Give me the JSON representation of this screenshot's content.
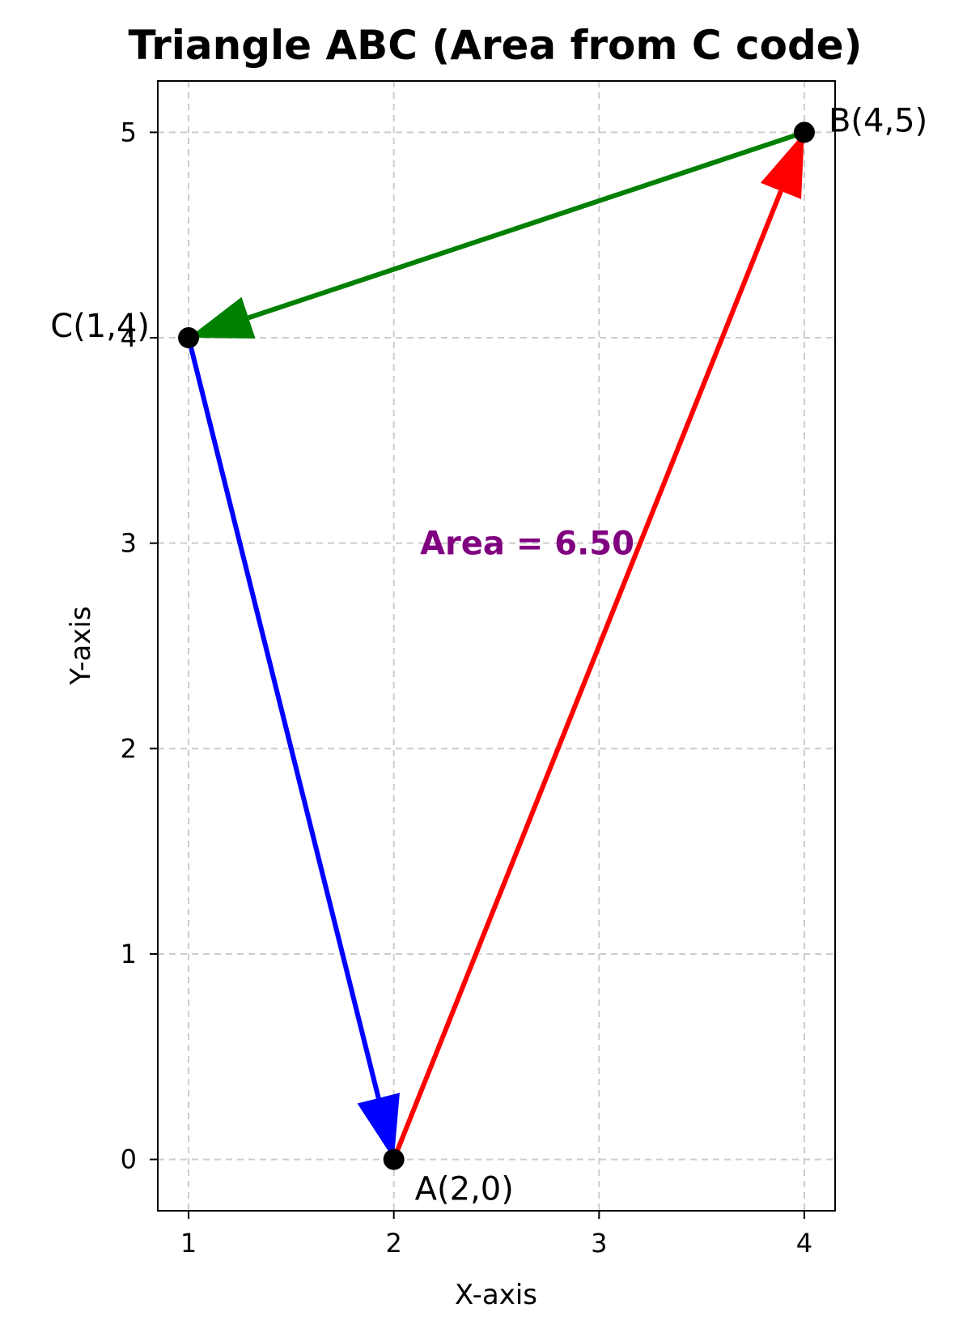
{
  "chart_data": {
    "type": "scatter",
    "title": "Triangle ABC (Area from C code)",
    "xlabel": "X-axis",
    "ylabel": "Y-axis",
    "xlim": [
      0.85,
      4.15
    ],
    "ylim": [
      -0.25,
      5.25
    ],
    "xticks": [
      "1",
      "2",
      "3",
      "4"
    ],
    "yticks": [
      "0",
      "1",
      "2",
      "3",
      "4",
      "5"
    ],
    "grid": true,
    "points": [
      {
        "name": "A",
        "label": "A(2,0)",
        "x": 2,
        "y": 0
      },
      {
        "name": "B",
        "label": "B(4,5)",
        "x": 4,
        "y": 5
      },
      {
        "name": "C",
        "label": "C(1,4)",
        "x": 1,
        "y": 4
      }
    ],
    "arrows": [
      {
        "from": [
          2,
          0
        ],
        "to": [
          4,
          5
        ],
        "color": "#ff0000"
      },
      {
        "from": [
          4,
          5
        ],
        "to": [
          1,
          4
        ],
        "color": "#008000"
      },
      {
        "from": [
          1,
          4
        ],
        "to": [
          2,
          0
        ],
        "color": "#0000ff"
      }
    ],
    "annotation": {
      "text": "Area = 6.50",
      "x": 2.65,
      "y": 3,
      "color": "#800080"
    }
  }
}
